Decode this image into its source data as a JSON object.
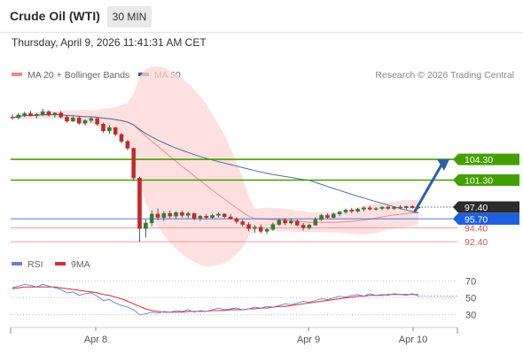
{
  "header": {
    "title": "Crude Oil (WTI)",
    "timeframe": "30 MIN"
  },
  "datetime": "Thursday, April 9, 2026 11:41:31 AM CET",
  "legend": {
    "ma20_label": "MA 20 + Bollinger Bands",
    "ma50_label": "MA 50",
    "research": "Research © 2026 Trading Central"
  },
  "rsi_legend": {
    "rsi_label": "RSI",
    "ma_label": "9MA"
  },
  "colors": {
    "up": "#2e7d32",
    "down": "#c62828",
    "bollinger": "#ffd6d6",
    "ma20": "#ef8c8c",
    "ma50": "#4a6fa5",
    "resistance": "#43a000",
    "support_blue": "#1e5fde",
    "support_red": "#f08a8a",
    "rsi": "#6a7fd6",
    "rsi_ma": "#d32f2f"
  },
  "chart_data": [
    {
      "type": "candlestick",
      "title": "Crude Oil (WTI)",
      "ylim": [
        90.5,
        113
      ],
      "x_ticks": [
        "Apr 8",
        "Apr 9",
        "Apr 10"
      ],
      "price_levels": [
        {
          "label": "104.30",
          "value": 104.3,
          "kind": "resistance"
        },
        {
          "label": "101.30",
          "value": 101.3,
          "kind": "resistance"
        },
        {
          "label": "97.40",
          "value": 97.4,
          "kind": "last_price"
        },
        {
          "label": "95.70",
          "value": 95.7,
          "kind": "support"
        },
        {
          "label": "94.40",
          "value": 94.4,
          "kind": "support"
        },
        {
          "label": "92.40",
          "value": 92.4,
          "kind": "support"
        }
      ],
      "forecast_arrow": {
        "from": 96.8,
        "to": 104.2
      },
      "candles": [
        [
          110.4,
          110.8,
          110.0,
          110.3
        ],
        [
          110.3,
          111.0,
          110.1,
          110.7
        ],
        [
          110.7,
          111.2,
          110.4,
          110.9
        ],
        [
          110.9,
          111.3,
          110.5,
          110.6
        ],
        [
          110.6,
          111.0,
          110.2,
          110.8
        ],
        [
          110.8,
          111.6,
          110.6,
          111.2
        ],
        [
          111.2,
          111.4,
          110.5,
          110.7
        ],
        [
          110.7,
          111.1,
          110.3,
          111.0
        ],
        [
          111.0,
          111.3,
          110.2,
          110.4
        ],
        [
          110.4,
          110.7,
          109.6,
          109.8
        ],
        [
          109.8,
          110.5,
          109.7,
          110.3
        ],
        [
          110.3,
          110.6,
          109.3,
          109.5
        ],
        [
          109.5,
          110.1,
          109.2,
          109.9
        ],
        [
          109.9,
          110.4,
          109.6,
          110.2
        ],
        [
          110.2,
          110.3,
          109.1,
          109.4
        ],
        [
          109.4,
          109.6,
          108.1,
          108.4
        ],
        [
          108.4,
          109.2,
          108.0,
          108.9
        ],
        [
          108.9,
          109.0,
          107.6,
          107.9
        ],
        [
          107.9,
          108.1,
          106.6,
          106.9
        ],
        [
          106.9,
          107.1,
          105.6,
          105.9
        ],
        [
          105.9,
          106.0,
          101.3,
          101.6
        ],
        [
          101.6,
          101.8,
          92.4,
          94.3
        ],
        [
          94.3,
          95.6,
          93.0,
          95.1
        ],
        [
          95.1,
          96.9,
          94.6,
          96.4
        ],
        [
          96.4,
          97.2,
          95.5,
          95.9
        ],
        [
          95.9,
          96.8,
          95.4,
          96.5
        ],
        [
          96.5,
          96.9,
          95.8,
          96.1
        ],
        [
          96.1,
          96.8,
          95.7,
          96.6
        ],
        [
          96.6,
          96.9,
          95.9,
          96.2
        ],
        [
          96.2,
          96.7,
          95.8,
          96.5
        ],
        [
          96.5,
          96.6,
          95.5,
          95.8
        ],
        [
          95.8,
          96.3,
          95.4,
          96.1
        ],
        [
          96.1,
          96.4,
          95.6,
          95.9
        ],
        [
          95.9,
          96.4,
          95.7,
          96.2
        ],
        [
          96.2,
          96.6,
          95.9,
          96.4
        ],
        [
          96.4,
          96.5,
          95.8,
          96.0
        ],
        [
          96.0,
          96.4,
          95.6,
          95.7
        ],
        [
          95.7,
          95.9,
          95.0,
          95.3
        ],
        [
          95.3,
          95.6,
          94.6,
          94.9
        ],
        [
          94.9,
          95.2,
          93.9,
          94.3
        ],
        [
          94.3,
          94.8,
          93.7,
          94.5
        ],
        [
          94.5,
          94.9,
          93.6,
          93.9
        ],
        [
          93.9,
          94.4,
          93.5,
          94.2
        ],
        [
          94.2,
          95.2,
          94.0,
          94.9
        ],
        [
          94.9,
          95.7,
          94.7,
          95.5
        ],
        [
          95.5,
          95.8,
          94.8,
          95.1
        ],
        [
          95.1,
          95.7,
          94.9,
          95.4
        ],
        [
          95.4,
          95.6,
          94.6,
          94.8
        ],
        [
          94.8,
          95.1,
          94.0,
          94.4
        ],
        [
          94.4,
          95.0,
          94.1,
          94.8
        ],
        [
          94.8,
          95.9,
          94.7,
          95.6
        ],
        [
          95.6,
          96.4,
          95.4,
          96.2
        ],
        [
          96.2,
          96.5,
          95.7,
          95.9
        ],
        [
          95.9,
          96.6,
          95.8,
          96.4
        ],
        [
          96.4,
          96.9,
          96.1,
          96.7
        ],
        [
          96.7,
          97.2,
          96.4,
          97.0
        ],
        [
          97.0,
          97.3,
          96.5,
          96.8
        ],
        [
          96.8,
          97.3,
          96.6,
          97.1
        ],
        [
          97.1,
          97.5,
          96.8,
          97.3
        ],
        [
          97.3,
          97.6,
          96.9,
          97.1
        ],
        [
          97.1,
          97.4,
          96.9,
          97.2
        ],
        [
          97.2,
          97.5,
          97.0,
          97.4
        ],
        [
          97.4,
          97.6,
          97.0,
          97.2
        ],
        [
          97.2,
          97.5,
          97.0,
          97.4
        ],
        [
          97.4,
          97.7,
          97.1,
          97.3
        ],
        [
          97.3,
          97.6,
          97.1,
          97.5
        ],
        [
          97.5,
          97.7,
          97.2,
          97.3
        ],
        [
          97.3,
          97.6,
          97.1,
          97.4
        ]
      ]
    },
    {
      "type": "line",
      "title": "RSI",
      "ylim": [
        15,
        80
      ],
      "y_ticks": [
        70,
        50,
        30
      ],
      "series": [
        {
          "name": "RSI",
          "values": [
            62,
            64,
            66,
            65,
            63,
            66,
            64,
            62,
            60,
            56,
            57,
            53,
            55,
            56,
            52,
            47,
            48,
            44,
            41,
            39,
            36,
            30,
            31,
            33,
            32,
            34,
            33,
            35,
            34,
            36,
            33,
            35,
            34,
            36,
            38,
            36,
            37,
            38,
            36,
            37,
            39,
            38,
            40,
            39,
            41,
            43,
            42,
            44,
            46,
            45,
            47,
            49,
            48,
            50,
            52,
            51,
            53,
            54,
            52,
            55,
            53,
            54,
            53,
            55,
            54,
            53,
            55,
            52
          ]
        },
        {
          "name": "9MA",
          "values": [
            61,
            62,
            63,
            63,
            63,
            63,
            63,
            63,
            62,
            61,
            60,
            59,
            58,
            57,
            56,
            54,
            53,
            51,
            49,
            46,
            43,
            40,
            37,
            35,
            34,
            33,
            33,
            33,
            33,
            34,
            34,
            34,
            34,
            35,
            35,
            35,
            36,
            36,
            36,
            37,
            37,
            38,
            38,
            39,
            40,
            40,
            41,
            42,
            43,
            44,
            45,
            46,
            47,
            48,
            49,
            50,
            51,
            52,
            52,
            53,
            53,
            53,
            54,
            54,
            54,
            54,
            54,
            54
          ]
        }
      ]
    }
  ]
}
